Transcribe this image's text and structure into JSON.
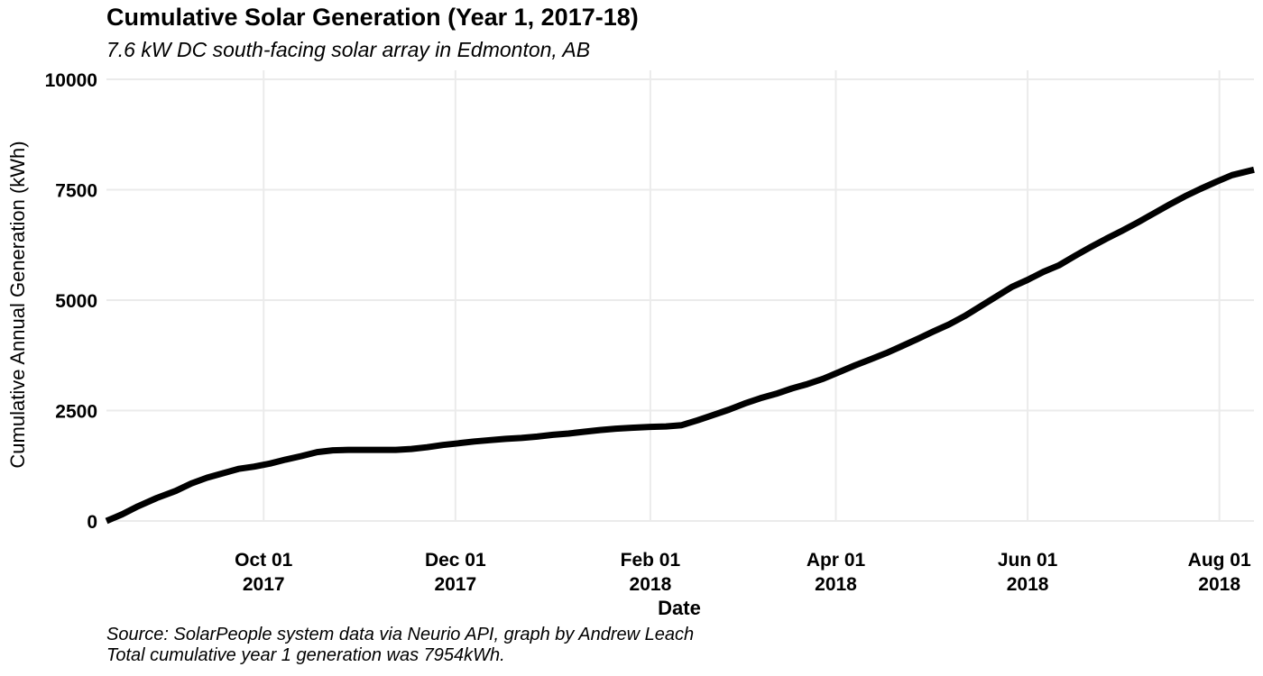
{
  "chart_data": {
    "type": "line",
    "title": "Cumulative Solar Generation (Year 1, 2017-18)",
    "subtitle": "7.6 kW DC south-facing solar array in Edmonton, AB",
    "xlabel": "Date",
    "ylabel": "Cumulative Annual Generation (kWh)",
    "caption": [
      "Source: SolarPeople system data via Neurio API, graph by Andrew Leach",
      "Total cumulative year 1 generation was 7954kWh."
    ],
    "xlim": [
      "2017-08-12",
      "2018-08-12"
    ],
    "ylim": [
      0,
      10000
    ],
    "x_ticks": [
      {
        "date": "2017-10-01",
        "label_top": "Oct 01",
        "label_bottom": "2017"
      },
      {
        "date": "2017-12-01",
        "label_top": "Dec 01",
        "label_bottom": "2017"
      },
      {
        "date": "2018-02-01",
        "label_top": "Feb 01",
        "label_bottom": "2018"
      },
      {
        "date": "2018-04-01",
        "label_top": "Apr 01",
        "label_bottom": "2018"
      },
      {
        "date": "2018-06-01",
        "label_top": "Jun 01",
        "label_bottom": "2018"
      },
      {
        "date": "2018-08-01",
        "label_top": "Aug 01",
        "label_bottom": "2018"
      }
    ],
    "y_ticks": [
      0,
      2500,
      5000,
      7500,
      10000
    ],
    "grid": true,
    "line_color": "#000000",
    "grid_color": "#ebebeb",
    "series": [
      {
        "x": [
          "2017-08-12",
          "2017-08-17",
          "2017-08-22",
          "2017-08-28",
          "2017-09-03",
          "2017-09-08",
          "2017-09-13",
          "2017-09-18",
          "2017-09-23",
          "2017-09-28",
          "2017-10-03",
          "2017-10-08",
          "2017-10-13",
          "2017-10-18",
          "2017-10-23",
          "2017-10-28",
          "2017-11-02",
          "2017-11-07",
          "2017-11-12",
          "2017-11-17",
          "2017-11-22",
          "2017-11-27",
          "2017-12-02",
          "2017-12-07",
          "2017-12-12",
          "2017-12-17",
          "2017-12-22",
          "2017-12-27",
          "2018-01-01",
          "2018-01-06",
          "2018-01-11",
          "2018-01-16",
          "2018-01-21",
          "2018-01-26",
          "2018-02-01",
          "2018-02-06",
          "2018-02-11",
          "2018-02-16",
          "2018-02-21",
          "2018-02-26",
          "2018-03-03",
          "2018-03-08",
          "2018-03-13",
          "2018-03-18",
          "2018-03-23",
          "2018-03-28",
          "2018-04-02",
          "2018-04-07",
          "2018-04-12",
          "2018-04-17",
          "2018-04-22",
          "2018-04-27",
          "2018-05-02",
          "2018-05-07",
          "2018-05-12",
          "2018-05-17",
          "2018-05-22",
          "2018-05-27",
          "2018-06-01",
          "2018-06-06",
          "2018-06-11",
          "2018-06-16",
          "2018-06-21",
          "2018-06-26",
          "2018-07-01",
          "2018-07-06",
          "2018-07-11",
          "2018-07-16",
          "2018-07-21",
          "2018-07-26",
          "2018-07-31",
          "2018-08-05",
          "2018-08-12"
        ],
        "values": [
          0,
          150,
          330,
          520,
          680,
          850,
          980,
          1080,
          1180,
          1230,
          1300,
          1390,
          1470,
          1560,
          1600,
          1610,
          1610,
          1610,
          1610,
          1630,
          1670,
          1720,
          1760,
          1800,
          1830,
          1860,
          1880,
          1910,
          1950,
          1980,
          2020,
          2060,
          2090,
          2110,
          2130,
          2140,
          2170,
          2280,
          2400,
          2520,
          2660,
          2780,
          2880,
          3000,
          3100,
          3220,
          3370,
          3520,
          3660,
          3800,
          3960,
          4120,
          4290,
          4450,
          4640,
          4860,
          5080,
          5300,
          5460,
          5640,
          5790,
          6000,
          6200,
          6390,
          6570,
          6760,
          6960,
          7160,
          7350,
          7520,
          7680,
          7830,
          7954
        ]
      }
    ]
  }
}
